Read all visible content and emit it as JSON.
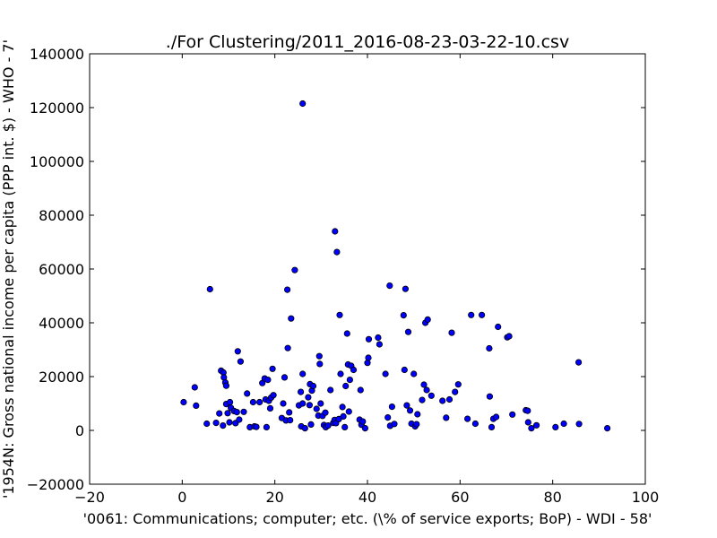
{
  "chart_data": {
    "type": "scatter",
    "title": "./For Clustering/2011_2016-08-23-03-22-10.csv",
    "xlabel": "'0061: Communications; computer; etc.  (\\% of service exports; BoP) - WDI - 58'",
    "ylabel": "'1954N: Gross national income per capita (PPP int. $) - WHO - 7'",
    "xlim": [
      -20,
      100
    ],
    "ylim": [
      -20000,
      140000
    ],
    "xticks": [
      "−20",
      "0",
      "20",
      "40",
      "60",
      "80",
      "100"
    ],
    "yticks": [
      "−20000",
      "0",
      "20000",
      "40000",
      "60000",
      "80000",
      "100000",
      "120000",
      "140000"
    ],
    "grid": false,
    "marker_color": "#0000ff",
    "points": [
      [
        0.3,
        10500
      ],
      [
        2.7,
        16000
      ],
      [
        3.0,
        9200
      ],
      [
        5.3,
        2500
      ],
      [
        6.0,
        52500
      ],
      [
        7.3,
        2800
      ],
      [
        8.0,
        6300
      ],
      [
        8.4,
        22200
      ],
      [
        8.8,
        1800
      ],
      [
        8.9,
        21500
      ],
      [
        9.0,
        19700
      ],
      [
        9.3,
        17800
      ],
      [
        9.5,
        16600
      ],
      [
        9.5,
        9800
      ],
      [
        9.8,
        6400
      ],
      [
        10.2,
        3000
      ],
      [
        10.3,
        10500
      ],
      [
        10.5,
        8400
      ],
      [
        11.2,
        7200
      ],
      [
        11.5,
        2700
      ],
      [
        11.8,
        6800
      ],
      [
        12.0,
        29400
      ],
      [
        12.3,
        4000
      ],
      [
        12.6,
        25600
      ],
      [
        13.3,
        6900
      ],
      [
        14.0,
        13700
      ],
      [
        14.6,
        1200
      ],
      [
        15.3,
        10500
      ],
      [
        15.6,
        1500
      ],
      [
        16.0,
        1300
      ],
      [
        16.7,
        10500
      ],
      [
        17.3,
        17600
      ],
      [
        17.8,
        19300
      ],
      [
        18.0,
        11500
      ],
      [
        18.2,
        1200
      ],
      [
        18.5,
        18800
      ],
      [
        18.7,
        11000
      ],
      [
        19.0,
        8200
      ],
      [
        19.2,
        12200
      ],
      [
        19.5,
        22900
      ],
      [
        19.7,
        13100
      ],
      [
        21.5,
        4600
      ],
      [
        21.8,
        10000
      ],
      [
        22.1,
        19700
      ],
      [
        22.4,
        3700
      ],
      [
        22.7,
        52300
      ],
      [
        22.8,
        30600
      ],
      [
        23.1,
        6700
      ],
      [
        23.3,
        3800
      ],
      [
        23.5,
        41600
      ],
      [
        24.3,
        59600
      ],
      [
        25.2,
        9300
      ],
      [
        25.6,
        14300
      ],
      [
        25.7,
        1500
      ],
      [
        26.0,
        21000
      ],
      [
        26.0,
        10000
      ],
      [
        26.0,
        121500
      ],
      [
        26.5,
        800
      ],
      [
        27.2,
        12300
      ],
      [
        27.5,
        9400
      ],
      [
        27.6,
        17200
      ],
      [
        27.8,
        2200
      ],
      [
        28.0,
        14800
      ],
      [
        28.3,
        16500
      ],
      [
        29.0,
        8000
      ],
      [
        29.4,
        5500
      ],
      [
        29.6,
        27600
      ],
      [
        29.7,
        24700
      ],
      [
        29.9,
        10000
      ],
      [
        30.3,
        5400
      ],
      [
        30.6,
        2000
      ],
      [
        30.9,
        6600
      ],
      [
        31.0,
        1200
      ],
      [
        31.5,
        1800
      ],
      [
        32.0,
        15000
      ],
      [
        32.6,
        2800
      ],
      [
        32.9,
        3900
      ],
      [
        33.0,
        74000
      ],
      [
        33.2,
        2700
      ],
      [
        33.4,
        66300
      ],
      [
        33.8,
        4200
      ],
      [
        34.0,
        42900
      ],
      [
        34.2,
        21000
      ],
      [
        34.6,
        8700
      ],
      [
        34.8,
        5200
      ],
      [
        35.1,
        1200
      ],
      [
        35.3,
        16500
      ],
      [
        35.6,
        36000
      ],
      [
        35.8,
        24500
      ],
      [
        36.0,
        7000
      ],
      [
        36.2,
        18800
      ],
      [
        36.5,
        24000
      ],
      [
        37.0,
        22500
      ],
      [
        38.3,
        4000
      ],
      [
        38.5,
        15000
      ],
      [
        38.7,
        2100
      ],
      [
        39.0,
        3300
      ],
      [
        39.5,
        800
      ],
      [
        40.0,
        25100
      ],
      [
        40.2,
        27000
      ],
      [
        40.3,
        33900
      ],
      [
        42.3,
        34500
      ],
      [
        42.6,
        32000
      ],
      [
        43.9,
        21000
      ],
      [
        44.4,
        4800
      ],
      [
        44.8,
        53800
      ],
      [
        44.9,
        1700
      ],
      [
        45.3,
        8800
      ],
      [
        45.8,
        2400
      ],
      [
        47.8,
        42800
      ],
      [
        48.0,
        22500
      ],
      [
        48.2,
        52600
      ],
      [
        48.5,
        9300
      ],
      [
        48.8,
        36600
      ],
      [
        49.2,
        7400
      ],
      [
        49.5,
        2500
      ],
      [
        50.0,
        21000
      ],
      [
        50.3,
        1500
      ],
      [
        50.6,
        2300
      ],
      [
        50.8,
        6000
      ],
      [
        51.8,
        11300
      ],
      [
        52.2,
        17000
      ],
      [
        52.5,
        40000
      ],
      [
        52.8,
        15000
      ],
      [
        53.0,
        41200
      ],
      [
        53.8,
        12900
      ],
      [
        56.2,
        11000
      ],
      [
        57.0,
        4700
      ],
      [
        57.7,
        11500
      ],
      [
        58.2,
        36300
      ],
      [
        58.9,
        14300
      ],
      [
        59.6,
        17100
      ],
      [
        61.6,
        4300
      ],
      [
        62.4,
        42900
      ],
      [
        63.3,
        2500
      ],
      [
        64.7,
        42900
      ],
      [
        66.3,
        30500
      ],
      [
        66.4,
        12600
      ],
      [
        66.8,
        1200
      ],
      [
        67.2,
        4300
      ],
      [
        67.8,
        5000
      ],
      [
        68.2,
        38500
      ],
      [
        70.2,
        34600
      ],
      [
        70.6,
        35000
      ],
      [
        71.3,
        5900
      ],
      [
        74.2,
        7500
      ],
      [
        74.6,
        7300
      ],
      [
        74.7,
        3000
      ],
      [
        75.4,
        800
      ],
      [
        76.5,
        1900
      ],
      [
        80.6,
        1200
      ],
      [
        82.4,
        2500
      ],
      [
        85.6,
        25300
      ],
      [
        85.7,
        2400
      ],
      [
        91.8,
        800
      ]
    ]
  }
}
